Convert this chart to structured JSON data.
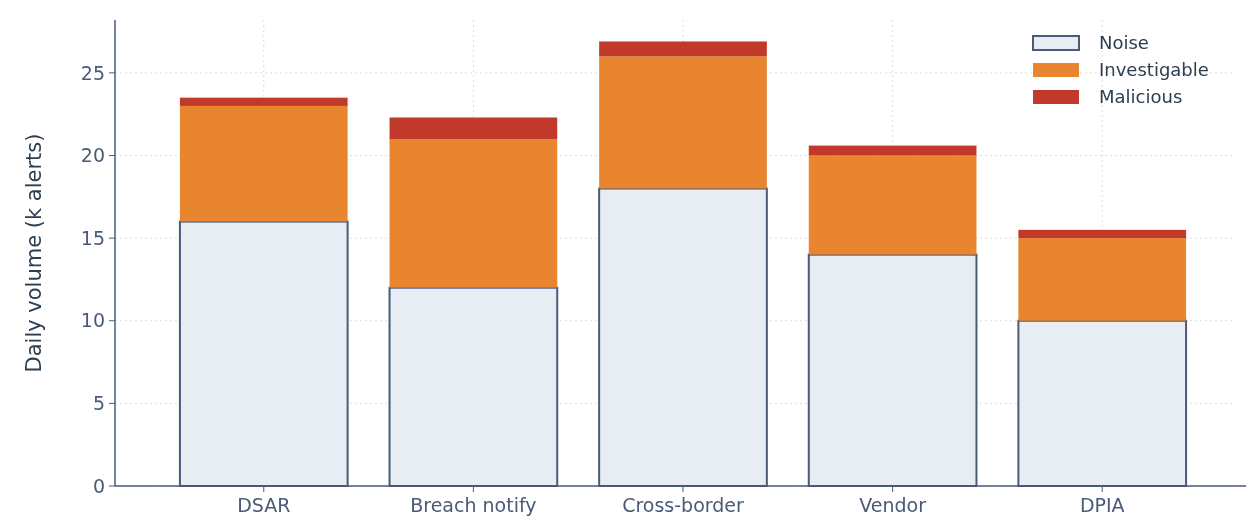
{
  "chart_data": {
    "type": "bar",
    "ylabel": "Daily volume (k alerts)",
    "categories": [
      "DSAR",
      "Breach notify",
      "Cross-border",
      "Vendor",
      "DPIA"
    ],
    "stacked": true,
    "series": [
      {
        "name": "Noise",
        "color": "#e8edf4",
        "values": [
          16,
          12,
          18,
          14,
          10
        ]
      },
      {
        "name": "Investigable",
        "color": "#e8852e",
        "values": [
          7,
          9,
          8,
          6,
          5
        ]
      },
      {
        "name": "Malicious",
        "color": "#c0392b",
        "values": [
          0.5,
          1.3,
          0.9,
          0.6,
          0.5
        ]
      }
    ],
    "ylim": [
      0,
      28.2
    ],
    "yticks": [
      0,
      5,
      10,
      15,
      20,
      25
    ],
    "grid": true,
    "legend": "top right"
  }
}
